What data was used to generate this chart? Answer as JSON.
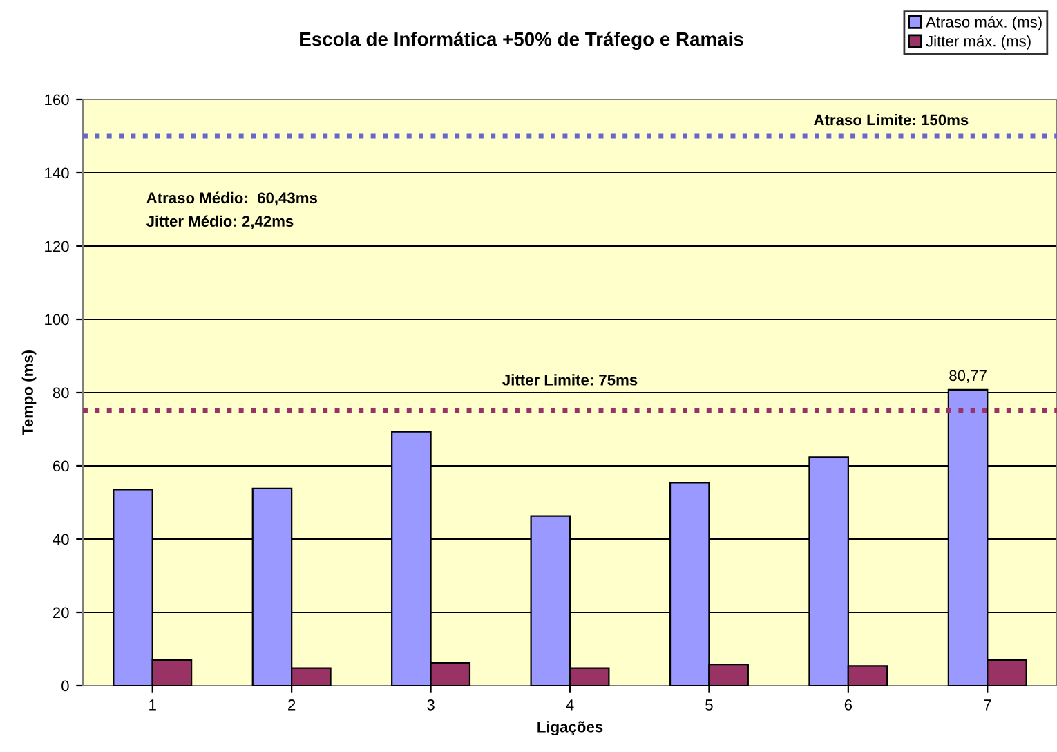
{
  "chart_data": {
    "type": "bar",
    "title": "Escola de Informática +50% de Tráfego e Ramais",
    "xlabel": "Ligações",
    "ylabel": "Tempo (ms)",
    "categories": [
      "1",
      "2",
      "3",
      "4",
      "5",
      "6",
      "7"
    ],
    "series": [
      {
        "name": "Atraso máx. (ms)",
        "color": "#9999ff",
        "values": [
          53.5,
          53.8,
          69.3,
          46.3,
          55.4,
          62.4,
          80.77
        ],
        "value_labels": [
          null,
          null,
          null,
          null,
          null,
          null,
          "80,77"
        ]
      },
      {
        "name": "Jitter máx. (ms)",
        "color": "#993366",
        "values": [
          7.0,
          4.8,
          6.2,
          4.8,
          5.8,
          5.4,
          7.0
        ]
      }
    ],
    "ylim": [
      0,
      160
    ],
    "yticks": [
      0,
      20,
      40,
      60,
      80,
      100,
      120,
      140,
      160
    ],
    "grid": "y",
    "legend": "top right",
    "ref_lines": [
      {
        "axis": "y",
        "value": 150,
        "label": "Atraso Limite: 150ms",
        "color": "#6666cc",
        "line_style": "dotted"
      },
      {
        "axis": "y",
        "value": 75,
        "label": "Jitter Limite: 75ms",
        "color": "#993366",
        "line_style": "dotted"
      }
    ],
    "annotations": [
      "Atraso Médio:  60,43ms",
      "Jitter Médio: 2,42ms"
    ]
  }
}
